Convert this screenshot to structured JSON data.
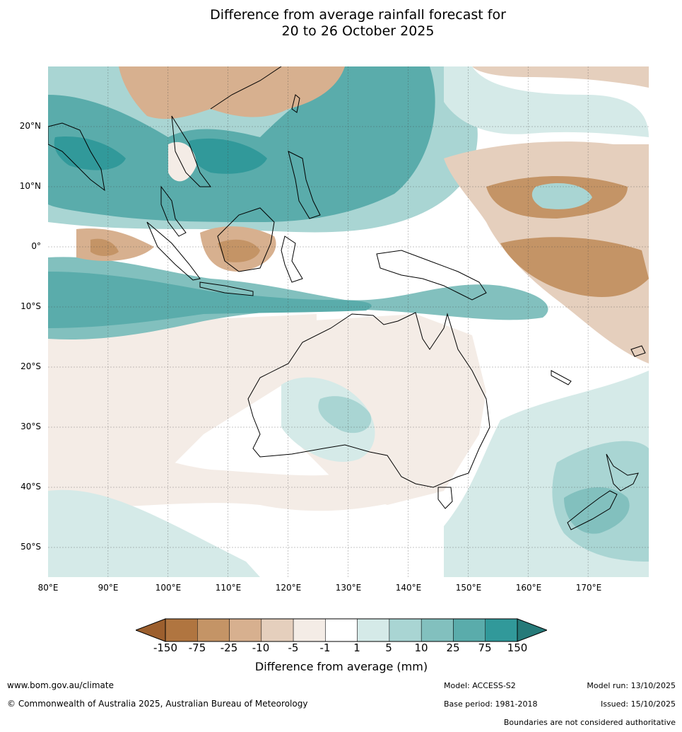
{
  "title": {
    "line1": "Difference from average rainfall forecast for",
    "line2": "20 to 26 October 2025"
  },
  "map": {
    "extent": {
      "lon_min": 80,
      "lon_max": 180,
      "lat_min": -55,
      "lat_max": 30
    },
    "lat_labels": [
      "20°N",
      "10°N",
      "0°",
      "10°S",
      "20°S",
      "30°S",
      "40°S",
      "50°S"
    ],
    "lon_labels": [
      "80°E",
      "90°E",
      "100°E",
      "110°E",
      "120°E",
      "130°E",
      "140°E",
      "150°E",
      "160°E",
      "170°E"
    ]
  },
  "colorbar": {
    "ticks": [
      "-150",
      "-75",
      "-25",
      "-10",
      "-5",
      "-1",
      "1",
      "5",
      "10",
      "25",
      "75",
      "150"
    ],
    "colors": [
      "#9c5f2e",
      "#b07540",
      "#c49466",
      "#d7b08f",
      "#e5cfbd",
      "#f4ece6",
      "#ffffff",
      "#d5eae8",
      "#a9d5d3",
      "#82c0be",
      "#5aacab",
      "#31999a",
      "#267a79"
    ],
    "label": "Difference from average (mm)"
  },
  "footer": {
    "website": "www.bom.gov.au/climate",
    "copyright": "© Commonwealth of Australia 2025, Australian Bureau of Meteorology",
    "model": "Model: ACCESS-S2",
    "base_period": "Base period: 1981-2018",
    "model_run": "Model run: 13/10/2025",
    "issued": "Issued: 15/10/2025",
    "disclaimer": "Boundaries are not considered authoritative"
  }
}
